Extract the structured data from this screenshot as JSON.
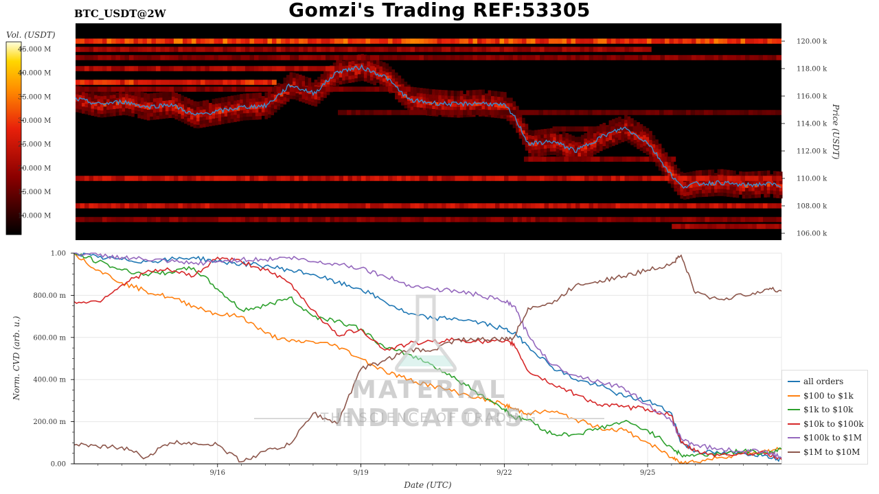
{
  "header": {
    "title": "Gomzi's Trading REF:53305",
    "symbol": "BTC_USDT@2W"
  },
  "watermark": {
    "brand": "MATERIAL INDICATORS",
    "tagline": "THE SCIENCE OF TRADING",
    "icon": "flask-icon"
  },
  "colors": {
    "all_orders": "#1f77b4",
    "100_1k": "#ff7f0e",
    "1k_10k": "#2ca02c",
    "10k_100k": "#d62728",
    "100k_1m": "#9467bd",
    "1m_10m": "#8c564b",
    "price_line": "#3a8fd0"
  },
  "chart_data": [
    {
      "type": "heatmap",
      "title": "",
      "ylabel": "Price (USDT)",
      "ylim": [
        105500,
        121300
      ],
      "y_ticks": [
        "106.00 k",
        "108.00 k",
        "110.00 k",
        "112.00 k",
        "114.00 k",
        "116.00 k",
        "118.00 k",
        "120.00 k"
      ],
      "colorbar": {
        "label": "Vol. (USDT)",
        "ticks": [
          "10.000 M",
          "15.000 M",
          "20.000 M",
          "25.000 M",
          "30.000 M",
          "35.000 M",
          "40.000 M",
          "45.000 M"
        ],
        "range": [
          6000000,
          46500000
        ]
      },
      "x_start_day": 13.0,
      "x_end_day": 27.8,
      "price_series": {
        "day": [
          13.0,
          13.5,
          14.0,
          14.5,
          15.0,
          15.5,
          16.0,
          16.5,
          17.0,
          17.5,
          18.0,
          18.5,
          19.0,
          19.5,
          20.0,
          20.5,
          21.0,
          21.5,
          22.0,
          22.2,
          22.5,
          23.0,
          23.5,
          24.0,
          24.5,
          25.0,
          25.5,
          25.7,
          26.0,
          26.5,
          27.0,
          27.5,
          27.8
        ],
        "price": [
          115800,
          115400,
          115600,
          115200,
          115400,
          114600,
          114900,
          115200,
          115300,
          116800,
          116200,
          117800,
          118100,
          117400,
          115700,
          115500,
          115400,
          115500,
          115300,
          114500,
          112500,
          112700,
          112000,
          113000,
          113700,
          112600,
          110200,
          109400,
          109600,
          109700,
          109500,
          109600,
          109500
        ]
      },
      "bands": [
        {
          "price": 120000,
          "intensity": 0.62,
          "from": 13.0,
          "to": 27.8
        },
        {
          "price": 119400,
          "intensity": 0.35,
          "from": 13.0,
          "to": 25.0
        },
        {
          "price": 118800,
          "intensity": 0.3,
          "from": 13.0,
          "to": 27.8
        },
        {
          "price": 118000,
          "intensity": 0.4,
          "from": 13.0,
          "to": 19.2
        },
        {
          "price": 117000,
          "intensity": 0.55,
          "from": 13.0,
          "to": 17.2
        },
        {
          "price": 116500,
          "intensity": 0.28,
          "from": 13.0,
          "to": 20.0
        },
        {
          "price": 114800,
          "intensity": 0.22,
          "from": 18.5,
          "to": 27.8
        },
        {
          "price": 113600,
          "intensity": 0.22,
          "from": 23.0,
          "to": 24.8
        },
        {
          "price": 111400,
          "intensity": 0.3,
          "from": 22.4,
          "to": 25.5
        },
        {
          "price": 110000,
          "intensity": 0.45,
          "from": 13.0,
          "to": 27.8
        },
        {
          "price": 108000,
          "intensity": 0.45,
          "from": 13.0,
          "to": 27.8
        },
        {
          "price": 107000,
          "intensity": 0.3,
          "from": 13.0,
          "to": 27.8
        },
        {
          "price": 106500,
          "intensity": 0.35,
          "from": 25.5,
          "to": 27.8
        }
      ]
    },
    {
      "type": "line",
      "title": "",
      "xlabel": "Date (UTC)",
      "ylabel": "Norm. CVD (arb. u.)",
      "ylim": [
        0,
        1
      ],
      "y_ticks": [
        "0.00",
        "200.00 m",
        "400.00 m",
        "600.00 m",
        "800.00 m",
        "1.00"
      ],
      "x_ticks": [
        {
          "day": 16,
          "label": "9/16"
        },
        {
          "day": 19,
          "label": "9/19"
        },
        {
          "day": 22,
          "label": "9/22"
        },
        {
          "day": 25,
          "label": "9/25"
        }
      ],
      "x": [
        13.0,
        13.5,
        14.0,
        14.5,
        15.0,
        15.5,
        16.0,
        16.5,
        17.0,
        17.5,
        18.0,
        18.5,
        19.0,
        19.5,
        20.0,
        20.5,
        21.0,
        21.5,
        22.0,
        22.2,
        22.5,
        23.0,
        23.5,
        24.0,
        24.5,
        25.0,
        25.5,
        25.7,
        26.0,
        26.5,
        27.0,
        27.5,
        27.8
      ],
      "series": [
        {
          "name": "all orders",
          "color_key": "all_orders",
          "values": [
            1.0,
            0.98,
            0.97,
            0.96,
            0.97,
            0.98,
            0.96,
            0.95,
            0.94,
            0.92,
            0.9,
            0.86,
            0.83,
            0.77,
            0.71,
            0.69,
            0.69,
            0.67,
            0.64,
            0.62,
            0.56,
            0.46,
            0.4,
            0.37,
            0.32,
            0.3,
            0.24,
            0.1,
            0.06,
            0.05,
            0.05,
            0.04,
            0.02
          ]
        },
        {
          "name": "$100 to $1k",
          "color_key": "100_1k",
          "values": [
            1.0,
            0.92,
            0.86,
            0.82,
            0.79,
            0.75,
            0.71,
            0.7,
            0.62,
            0.58,
            0.58,
            0.56,
            0.5,
            0.44,
            0.4,
            0.37,
            0.34,
            0.31,
            0.28,
            0.26,
            0.24,
            0.25,
            0.21,
            0.17,
            0.16,
            0.1,
            0.03,
            0.01,
            0.01,
            0.03,
            0.05,
            0.06,
            0.07
          ]
        },
        {
          "name": "$1k to $10k",
          "color_key": "1k_10k",
          "values": [
            1.0,
            0.96,
            0.92,
            0.9,
            0.91,
            0.93,
            0.83,
            0.73,
            0.75,
            0.79,
            0.7,
            0.68,
            0.64,
            0.55,
            0.52,
            0.47,
            0.4,
            0.33,
            0.26,
            0.22,
            0.21,
            0.14,
            0.14,
            0.17,
            0.2,
            0.16,
            0.08,
            0.04,
            0.04,
            0.05,
            0.06,
            0.05,
            0.07
          ]
        },
        {
          "name": "$10k to $100k",
          "color_key": "10k_100k",
          "values": [
            0.77,
            0.77,
            0.85,
            0.91,
            0.92,
            0.89,
            0.98,
            0.96,
            0.92,
            0.86,
            0.73,
            0.61,
            0.64,
            0.54,
            0.57,
            0.58,
            0.59,
            0.58,
            0.58,
            0.57,
            0.44,
            0.38,
            0.33,
            0.28,
            0.27,
            0.26,
            0.23,
            0.1,
            0.06,
            0.04,
            0.05,
            0.05,
            0.02
          ]
        },
        {
          "name": "$100k to $1M",
          "color_key": "100k_1m",
          "values": [
            1.0,
            0.99,
            0.98,
            0.97,
            0.96,
            0.95,
            0.96,
            0.97,
            0.97,
            0.98,
            0.96,
            0.95,
            0.93,
            0.89,
            0.85,
            0.83,
            0.82,
            0.8,
            0.77,
            0.75,
            0.61,
            0.47,
            0.42,
            0.39,
            0.36,
            0.28,
            0.2,
            0.12,
            0.09,
            0.07,
            0.06,
            0.06,
            0.03
          ]
        },
        {
          "name": "$1M to $10M",
          "color_key": "1m_10m",
          "values": [
            0.09,
            0.08,
            0.08,
            0.03,
            0.1,
            0.1,
            0.09,
            0.01,
            0.06,
            0.09,
            0.24,
            0.19,
            0.45,
            0.49,
            0.54,
            0.54,
            0.59,
            0.59,
            0.59,
            0.6,
            0.74,
            0.76,
            0.85,
            0.87,
            0.89,
            0.92,
            0.95,
            0.99,
            0.81,
            0.78,
            0.8,
            0.83,
            0.82
          ]
        }
      ]
    }
  ]
}
